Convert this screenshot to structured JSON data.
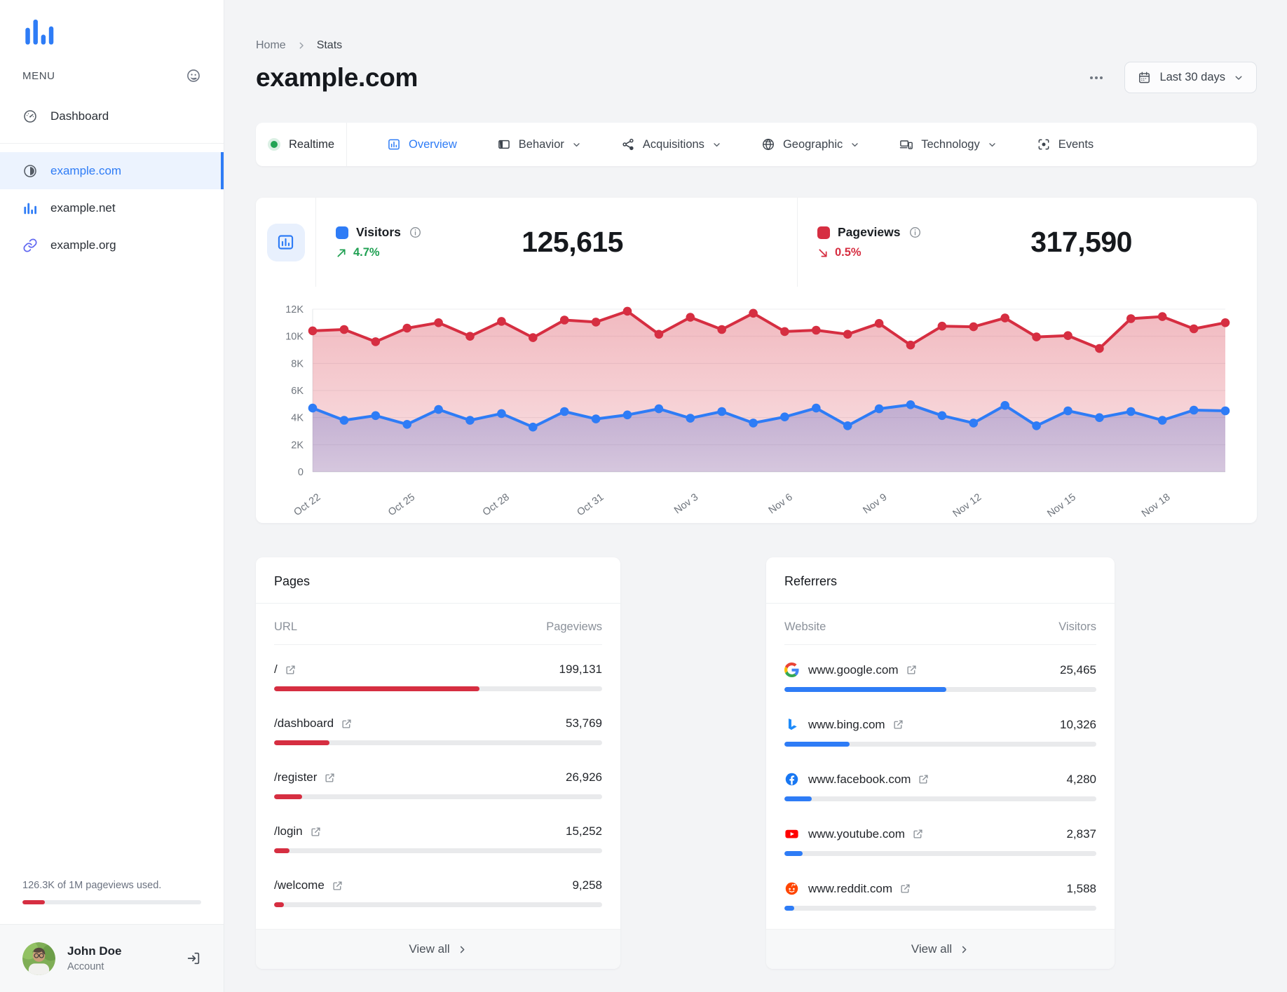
{
  "colors": {
    "accent_blue": "#2e7cf6",
    "accent_red": "#d62e41",
    "green": "#1fa052",
    "active_item_bg": "#ecf3fe",
    "page_bg": "#f3f4f6"
  },
  "sidebar": {
    "menu_label": "MENU",
    "dashboard_label": "Dashboard",
    "sites": [
      {
        "label": "example.com",
        "icon": "contrast-icon",
        "active": true
      },
      {
        "label": "example.net",
        "icon": "bar-chart-icon",
        "active": false
      },
      {
        "label": "example.org",
        "icon": "link-icon",
        "active": false
      }
    ],
    "usage_text": "126.3K of 1M pageviews used.",
    "usage_percent": 12.6,
    "account_name": "John Doe",
    "account_sub": "Account"
  },
  "header": {
    "breadcrumb_home": "Home",
    "breadcrumb_current": "Stats",
    "title": "example.com",
    "date_range": "Last 30 days"
  },
  "tabs": {
    "realtime": "Realtime",
    "overview": "Overview",
    "behavior": "Behavior",
    "acquisitions": "Acquisitions",
    "geographic": "Geographic",
    "technology": "Technology",
    "events": "Events"
  },
  "stats": {
    "visitors": {
      "label": "Visitors",
      "value": "125,615",
      "delta": "4.7%",
      "trend": "up"
    },
    "pageviews": {
      "label": "Pageviews",
      "value": "317,590",
      "delta": "0.5%",
      "trend": "down"
    }
  },
  "chart_data": {
    "type": "line",
    "x": [
      "Oct 22",
      "Oct 23",
      "Oct 24",
      "Oct 25",
      "Oct 26",
      "Oct 27",
      "Oct 28",
      "Oct 29",
      "Oct 30",
      "Oct 31",
      "Nov 1",
      "Nov 2",
      "Nov 3",
      "Nov 4",
      "Nov 5",
      "Nov 6",
      "Nov 7",
      "Nov 8",
      "Nov 9",
      "Nov 10",
      "Nov 11",
      "Nov 12",
      "Nov 13",
      "Nov 14",
      "Nov 15",
      "Nov 16",
      "Nov 17",
      "Nov 18",
      "Nov 19",
      "Nov 20"
    ],
    "x_tick_every": 3,
    "series": [
      {
        "name": "Pageviews",
        "color": "#d62e41",
        "values": [
          10400,
          10500,
          9600,
          10600,
          11000,
          10000,
          11100,
          9900,
          11200,
          11050,
          11850,
          10150,
          11400,
          10500,
          11700,
          10350,
          10450,
          10150,
          10950,
          9350,
          10750,
          10700,
          11350,
          9950,
          10050,
          9100,
          11300,
          11450,
          10550,
          11000
        ]
      },
      {
        "name": "Visitors",
        "color": "#2e7cf6",
        "values": [
          4700,
          3800,
          4150,
          3500,
          4600,
          3800,
          4300,
          3300,
          4450,
          3900,
          4200,
          4650,
          3950,
          4450,
          3600,
          4050,
          4700,
          3400,
          4650,
          4950,
          4150,
          3600,
          4900,
          3400,
          4500,
          4000,
          4450,
          3800,
          4550,
          4500
        ]
      }
    ],
    "ylim": [
      0,
      12000
    ],
    "y_ticks": [
      0,
      2000,
      4000,
      6000,
      8000,
      10000,
      12000
    ],
    "y_tick_labels": [
      "0",
      "2K",
      "4K",
      "6K",
      "8K",
      "10K",
      "12K"
    ],
    "grid": true,
    "legend_position": "none"
  },
  "pages_panel": {
    "title": "Pages",
    "col_left": "URL",
    "col_right": "Pageviews",
    "row_link_icon": "external-link-icon",
    "rows": [
      {
        "url": "/",
        "value": "199,131",
        "percent": 62.7
      },
      {
        "url": "/dashboard",
        "value": "53,769",
        "percent": 16.9
      },
      {
        "url": "/register",
        "value": "26,926",
        "percent": 8.5
      },
      {
        "url": "/login",
        "value": "15,252",
        "percent": 4.8
      },
      {
        "url": "/welcome",
        "value": "9,258",
        "percent": 2.9
      }
    ],
    "view_all": "View all"
  },
  "referrers_panel": {
    "title": "Referrers",
    "col_left": "Website",
    "col_right": "Visitors",
    "row_link_icon": "external-link-icon",
    "rows": [
      {
        "site": "www.google.com",
        "value": "25,465",
        "percent": 52.0,
        "icon": "google-favicon"
      },
      {
        "site": "www.bing.com",
        "value": "10,326",
        "percent": 21.0,
        "icon": "bing-favicon"
      },
      {
        "site": "www.facebook.com",
        "value": "4,280",
        "percent": 8.7,
        "icon": "facebook-favicon"
      },
      {
        "site": "www.youtube.com",
        "value": "2,837",
        "percent": 5.8,
        "icon": "youtube-favicon"
      },
      {
        "site": "www.reddit.com",
        "value": "1,588",
        "percent": 3.2,
        "icon": "reddit-favicon"
      }
    ],
    "view_all": "View all"
  }
}
